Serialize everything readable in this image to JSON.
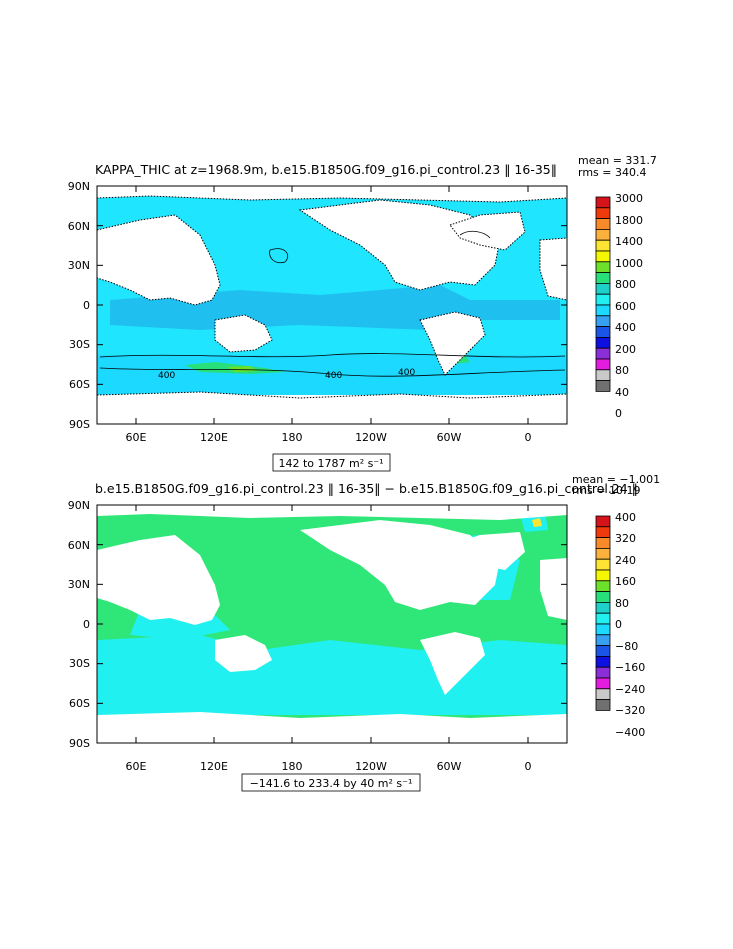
{
  "panels": [
    {
      "title": "KAPPA_THIC at z=1968.9m, b.e15.B1850G.f09_g16.pi_control.23 ‖ 16-35‖",
      "mean_label": "mean = 331.7",
      "rms_label": "rms = 340.4",
      "range_label": "142 to 1787 m² s⁻¹",
      "contour_labels": [
        "400",
        "400",
        "400"
      ],
      "colorbar_labels": [
        "3000",
        "1800",
        "1400",
        "1000",
        "800",
        "600",
        "400",
        "200",
        "80",
        "40",
        "0"
      ],
      "colorbar_colors": [
        "#d4131a",
        "#f03a0c",
        "#f88a2a",
        "#fbb13c",
        "#fde432",
        "#f4f700",
        "#6ce02a",
        "#28e07a",
        "#1fd0c8",
        "#20f0ef",
        "#1cd9ff",
        "#38a0f0",
        "#1a55e6",
        "#0d10e0",
        "#8a2fd8",
        "#e21ddf",
        "#c9c9c9",
        "#707070"
      ],
      "ocean_fill": "#20e5ff"
    },
    {
      "title": "b.e15.B1850G.f09_g16.pi_control.23 ‖ 16-35‖ − b.e15.B1850G.f09_g16.pi_control.24 ‖",
      "mean_label": "mean = −1.001",
      "rms_label": "rms = 10.19",
      "range_label": "−141.6 to 233.4 by 40 m² s⁻¹",
      "colorbar_labels": [
        "400",
        "320",
        "240",
        "160",
        "80",
        "0",
        "−80",
        "−160",
        "−240",
        "−320",
        "−400"
      ],
      "colorbar_colors": [
        "#d4131a",
        "#f03a0c",
        "#f88a2a",
        "#fbb13c",
        "#fde432",
        "#f4f700",
        "#6ce02a",
        "#28e07a",
        "#1fd0c8",
        "#20f0ef",
        "#1cd9ff",
        "#38a0f0",
        "#1a55e6",
        "#0d10e0",
        "#8a2fd8",
        "#e21ddf",
        "#c9c9c9",
        "#707070"
      ],
      "ocean_fill": "#2fe678"
    }
  ],
  "lat_labels": [
    "90N",
    "60N",
    "30N",
    "0",
    "30S",
    "60S",
    "90S"
  ],
  "lon_labels": [
    "60E",
    "120E",
    "180",
    "120W",
    "60W",
    "0"
  ]
}
